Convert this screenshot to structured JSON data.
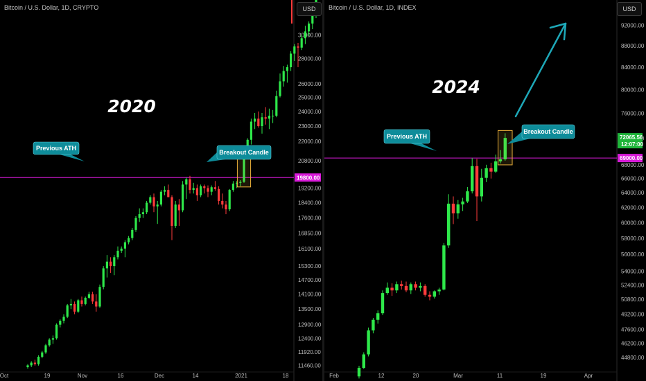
{
  "colors": {
    "up": "#2ee84a",
    "down": "#ff3b3b",
    "ath_line": "#d81bd8",
    "callout": "#0e8c9a",
    "highlight": "#f0b43c",
    "arrow": "#1ea8b8"
  },
  "left": {
    "title": "Bitcoin / U.S. Dollar, 1D, CRYPTO",
    "currency": "USD",
    "year_label": "2020",
    "callouts": {
      "ath": "Previous ATH",
      "breakout": "Breakout Candle"
    },
    "ath_price": "19800.00",
    "price_ticks": [
      "30000.00",
      "28000.00",
      "26000.00",
      "25000.00",
      "24000.00",
      "23000.00",
      "22000.00",
      "20800.00",
      "19200.00",
      "18400.00",
      "17600.00",
      "16850.00",
      "16100.00",
      "15300.00",
      "14700.00",
      "14100.00",
      "13500.00",
      "12900.00",
      "12400.00",
      "11920.00",
      "11460.00"
    ],
    "date_ticks": [
      "Oct",
      "19",
      "Nov",
      "16",
      "Dec",
      "14",
      "2021",
      "18"
    ]
  },
  "right": {
    "title": "Bitcoin / U.S. Dollar, 1D, INDEX",
    "currency": "USD",
    "year_label": "2024",
    "callouts": {
      "ath": "Previous ATH",
      "breakout": "Breakout Candle"
    },
    "ath_price": "69000.00",
    "last_price": "72065.56",
    "countdown": "12:07:00",
    "price_ticks": [
      "92000.00",
      "88000.00",
      "84000.00",
      "80000.00",
      "76000.00",
      "72000.00",
      "68000.00",
      "66000.00",
      "64000.00",
      "62000.00",
      "60000.00",
      "58000.00",
      "56000.00",
      "54000.00",
      "52400.00",
      "50800.00",
      "49200.00",
      "47600.00",
      "46200.00",
      "44800.00"
    ],
    "date_ticks": [
      "Feb",
      "12",
      "20",
      "Mar",
      "11",
      "19",
      "Apr"
    ]
  },
  "chart_data": [
    {
      "type": "candlestick",
      "title": "Bitcoin / U.S. Dollar, 1D, CRYPTO",
      "annotations": [
        "2020",
        "Previous ATH",
        "Breakout Candle"
      ],
      "previous_ath": 19800,
      "ylim": [
        11400,
        31000
      ],
      "y_scale": "log",
      "candles": [
        [
          11400,
          11500,
          11350,
          11460
        ],
        [
          11460,
          11600,
          11400,
          11550
        ],
        [
          11550,
          11650,
          11450,
          11500
        ],
        [
          11500,
          11800,
          11450,
          11750
        ],
        [
          11750,
          11950,
          11700,
          11900
        ],
        [
          11900,
          12200,
          11850,
          12150
        ],
        [
          12150,
          12400,
          12100,
          12350
        ],
        [
          12350,
          12500,
          12200,
          12400
        ],
        [
          12400,
          12950,
          12350,
          12900
        ],
        [
          12900,
          13100,
          12800,
          13050
        ],
        [
          13050,
          13300,
          12950,
          13200
        ],
        [
          13200,
          13700,
          13150,
          13650
        ],
        [
          13650,
          13900,
          13500,
          13700
        ],
        [
          13700,
          13800,
          13300,
          13400
        ],
        [
          13400,
          13900,
          13350,
          13850
        ],
        [
          13850,
          14000,
          13600,
          13700
        ],
        [
          13700,
          14000,
          13650,
          13950
        ],
        [
          13950,
          14200,
          13900,
          14100
        ],
        [
          14100,
          14200,
          13700,
          13800
        ],
        [
          13800,
          14100,
          13400,
          13600
        ],
        [
          13600,
          14500,
          13550,
          14400
        ],
        [
          14400,
          15300,
          14300,
          15200
        ],
        [
          15200,
          15800,
          14800,
          15500
        ],
        [
          15500,
          15700,
          15000,
          15300
        ],
        [
          15300,
          15800,
          14900,
          15700
        ],
        [
          15700,
          16200,
          15600,
          16000
        ],
        [
          16000,
          16200,
          15900,
          16100
        ],
        [
          16100,
          16500,
          15700,
          16400
        ],
        [
          16400,
          16700,
          16300,
          16600
        ],
        [
          16600,
          17100,
          16500,
          17000
        ],
        [
          17000,
          17700,
          16900,
          17600
        ],
        [
          17600,
          18100,
          17400,
          17800
        ],
        [
          17800,
          18100,
          17600,
          17900
        ],
        [
          17900,
          18500,
          17800,
          18400
        ],
        [
          18400,
          18800,
          18300,
          18700
        ],
        [
          18700,
          18900,
          17900,
          18200
        ],
        [
          18200,
          18500,
          17300,
          18300
        ],
        [
          18300,
          19100,
          18200,
          19000
        ],
        [
          19000,
          19300,
          18800,
          19100
        ],
        [
          19100,
          19400,
          18700,
          18700
        ],
        [
          18700,
          18800,
          16500,
          17200
        ],
        [
          17200,
          18500,
          17100,
          18300
        ],
        [
          18300,
          18600,
          17200,
          18000
        ],
        [
          18000,
          19600,
          17900,
          19400
        ],
        [
          19400,
          19800,
          18600,
          19700
        ],
        [
          19700,
          19900,
          18900,
          19100
        ],
        [
          19100,
          19500,
          18900,
          19200
        ],
        [
          19200,
          19400,
          18500,
          18800
        ],
        [
          18800,
          19400,
          18700,
          19300
        ],
        [
          19300,
          19400,
          18900,
          19200
        ],
        [
          19200,
          19350,
          18700,
          19000
        ],
        [
          19000,
          19350,
          18800,
          19250
        ],
        [
          19250,
          19600,
          19050,
          19150
        ],
        [
          19150,
          19300,
          18300,
          18500
        ],
        [
          18500,
          18900,
          18100,
          18300
        ],
        [
          18300,
          18500,
          17800,
          18050
        ],
        [
          18050,
          19150,
          17950,
          19100
        ],
        [
          19100,
          19600,
          19000,
          19450
        ],
        [
          19450,
          19600,
          19200,
          19500
        ],
        [
          19500,
          19650,
          19300,
          19550
        ],
        [
          19550,
          21400,
          19500,
          21200
        ],
        [
          21200,
          22200,
          21000,
          22100
        ],
        [
          22100,
          23500,
          21800,
          23300
        ],
        [
          23300,
          23900,
          22800,
          23500
        ],
        [
          23500,
          24000,
          22900,
          23000
        ],
        [
          23000,
          23900,
          22500,
          23600
        ],
        [
          23600,
          24300,
          23100,
          23500
        ],
        [
          23500,
          24200,
          22800,
          23700
        ],
        [
          23700,
          24100,
          23200,
          23700
        ],
        [
          23700,
          25500,
          23600,
          25100
        ],
        [
          25100,
          26800,
          25000,
          26200
        ],
        [
          26200,
          27400,
          25800,
          27000
        ],
        [
          27000,
          27500,
          26100,
          27300
        ],
        [
          27300,
          28600,
          27000,
          28400
        ],
        [
          28400,
          29200,
          27800,
          29000
        ],
        [
          29000,
          29300,
          27300,
          28900
        ],
        [
          28900,
          30000,
          28700,
          29700
        ],
        [
          29700,
          30800,
          29200,
          30300
        ],
        [
          30300,
          31200,
          29900,
          31000
        ],
        [
          31000,
          33000,
          30500,
          32500
        ],
        [
          32500,
          34800,
          31500,
          34000
        ]
      ]
    },
    {
      "type": "candlestick",
      "title": "Bitcoin / U.S. Dollar, 1D, INDEX",
      "annotations": [
        "2024",
        "Previous ATH",
        "Breakout Candle"
      ],
      "previous_ath": 69000,
      "last_price": 72065.56,
      "ylim": [
        44000,
        94000
      ],
      "y_scale": "log",
      "candles": [
        [
          43000,
          44000,
          42800,
          43800
        ],
        [
          43800,
          45300,
          43700,
          45100
        ],
        [
          45100,
          47800,
          44900,
          47500
        ],
        [
          47500,
          48800,
          47200,
          48600
        ],
        [
          48600,
          49600,
          48200,
          49300
        ],
        [
          49300,
          51800,
          49100,
          51500
        ],
        [
          51500,
          52700,
          51300,
          52100
        ],
        [
          52100,
          52600,
          51200,
          51800
        ],
        [
          51800,
          52800,
          51500,
          52500
        ],
        [
          52500,
          52900,
          51900,
          52300
        ],
        [
          52300,
          52800,
          51600,
          51800
        ],
        [
          51800,
          52700,
          51400,
          52500
        ],
        [
          52500,
          52800,
          51800,
          52100
        ],
        [
          52100,
          52700,
          51700,
          52300
        ],
        [
          52300,
          52500,
          51100,
          51300
        ],
        [
          51300,
          51700,
          50700,
          51100
        ],
        [
          51100,
          51800,
          50900,
          51700
        ],
        [
          51700,
          52100,
          51300,
          51900
        ],
        [
          51900,
          57400,
          51800,
          57100
        ],
        [
          57100,
          63800,
          56800,
          62500
        ],
        [
          62500,
          63500,
          59800,
          61200
        ],
        [
          61200,
          63000,
          60500,
          62400
        ],
        [
          62400,
          63300,
          61500,
          62800
        ],
        [
          62800,
          64800,
          62600,
          64200
        ],
        [
          64200,
          69000,
          63900,
          67800
        ],
        [
          67800,
          68900,
          60200,
          63500
        ],
        [
          63500,
          67400,
          62800,
          66100
        ],
        [
          66100,
          68000,
          65500,
          67500
        ],
        [
          67500,
          68300,
          66000,
          67000
        ],
        [
          67000,
          69500,
          66800,
          68500
        ],
        [
          68500,
          70200,
          68200,
          68800
        ],
        [
          68800,
          72800,
          68600,
          72065
        ]
      ]
    }
  ]
}
